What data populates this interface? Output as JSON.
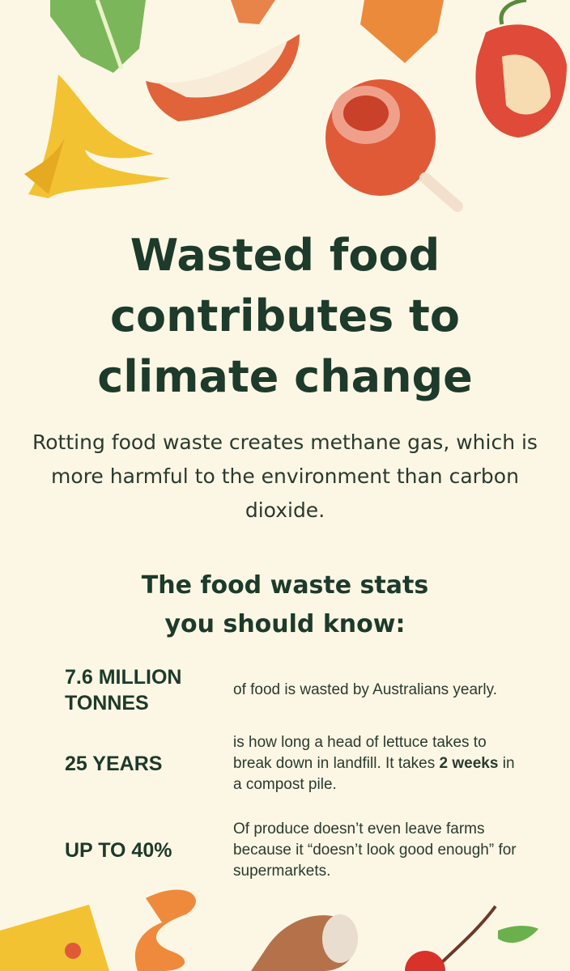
{
  "title": [
    "Wasted food",
    "contributes to",
    "climate change"
  ],
  "subtitle": "Rotting food waste creates methane gas, which is more harmful to the environment than carbon dioxide.",
  "stats_heading": [
    "The food waste stats",
    "you should know:"
  ],
  "stats": [
    {
      "figure": "7.6 MILLION TONNES",
      "desc": "of food is wasted by Australians yearly."
    },
    {
      "figure": "25 YEARS",
      "desc_before": "is how long a head of lettuce takes to break down in landfill. It takes ",
      "desc_bold": "2 weeks",
      "desc_after": " in a compost pile."
    },
    {
      "figure": "UP TO 40%",
      "desc": "Of produce doesn’t even leave farms because it “doesn’t look good enough” for supermarkets."
    }
  ],
  "colors": {
    "background": "#fcf7e4",
    "text": "#1d3a2b"
  },
  "illustrations": [
    "lettuce-leaf",
    "banana-peel",
    "coconut-shell",
    "carrot",
    "orange-slice",
    "meat-drumstick",
    "apple-core",
    "cheese-wedge",
    "orange-peel",
    "eggshell",
    "cherries"
  ]
}
